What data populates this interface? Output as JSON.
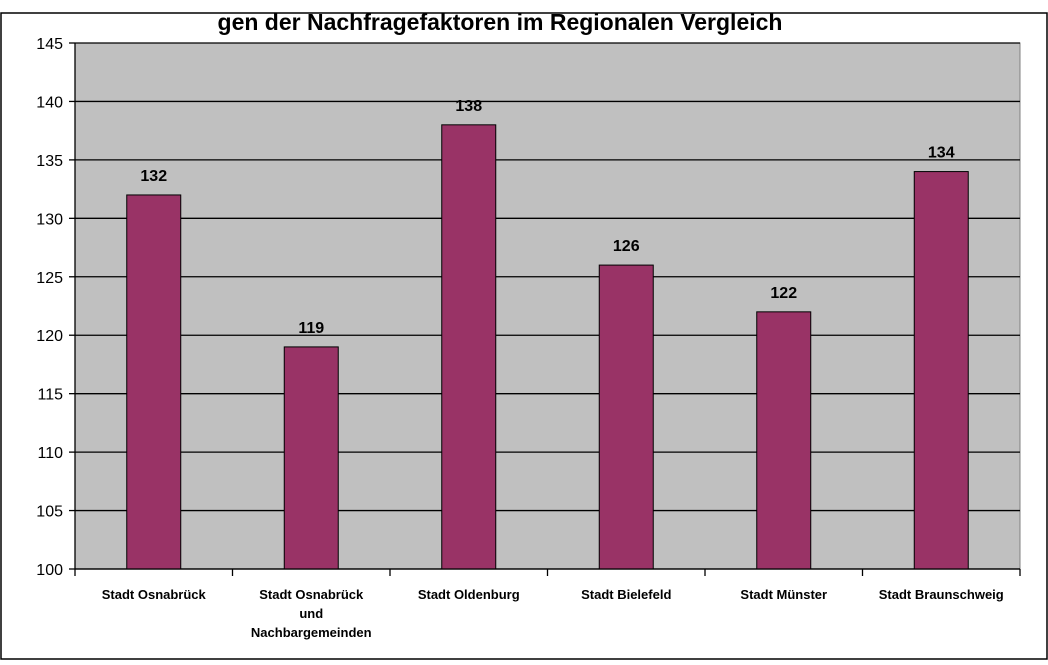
{
  "colors": {
    "plot_background": "#c0c0c0",
    "bar_fill": "#993366",
    "gridline": "#000000"
  },
  "chart_data": {
    "type": "bar",
    "title": "gen der Nachfragefaktoren im Regionalen Vergleich",
    "xlabel": "",
    "ylabel": "",
    "categories": [
      [
        "Stadt Osnabrück"
      ],
      [
        "Stadt Osnabrück",
        "und",
        "Nachbargemeinden"
      ],
      [
        "Stadt Oldenburg"
      ],
      [
        "Stadt Bielefeld"
      ],
      [
        "Stadt Münster"
      ],
      [
        "Stadt Braunschweig"
      ]
    ],
    "values": [
      132,
      119,
      138,
      126,
      122,
      134
    ],
    "data_labels": [
      "132",
      "119",
      "138",
      "126",
      "122",
      "134"
    ],
    "ylim": [
      100,
      145
    ],
    "yticks": [
      100,
      105,
      110,
      115,
      120,
      125,
      130,
      135,
      140,
      145
    ],
    "grid": true,
    "legend": "none"
  }
}
